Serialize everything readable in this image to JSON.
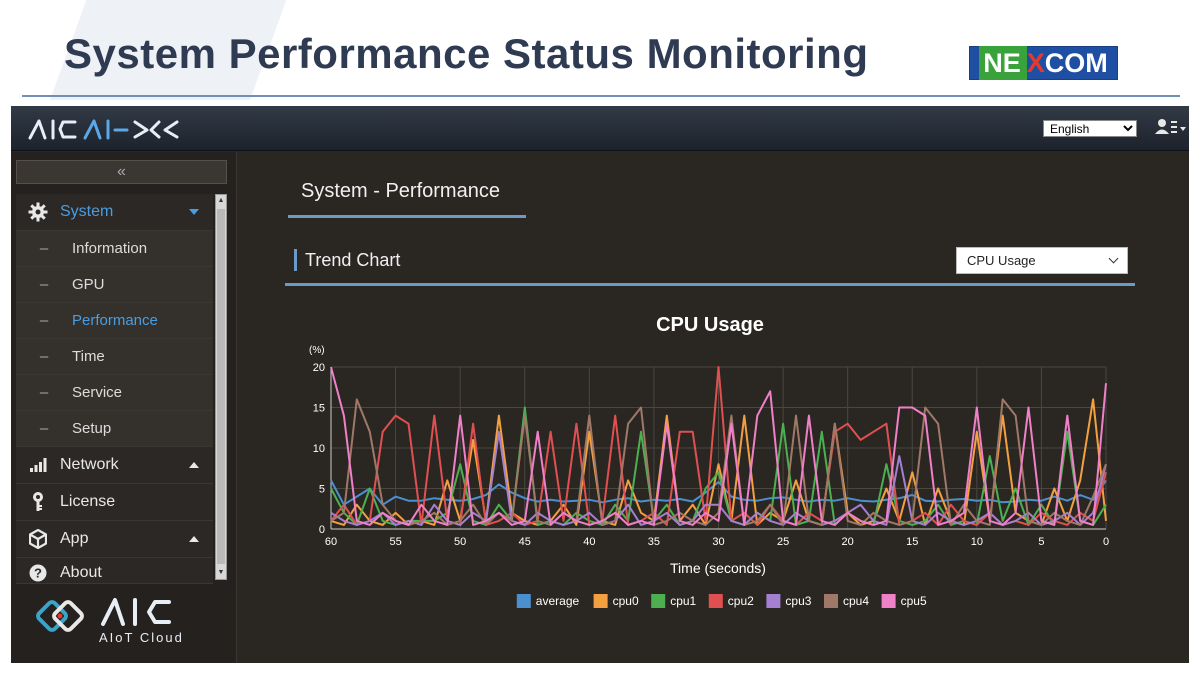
{
  "slide": {
    "title": "System Performance Status Monitoring",
    "brand_logo_text": "NEXCOM"
  },
  "topbar": {
    "app_logo_text": "AICAI-X",
    "language_selected": "English",
    "user_menu_icon": "user-list-icon"
  },
  "sidebar": {
    "collapse_icon": "double-chevron-left-icon",
    "collapse_glyph": "«",
    "items": [
      {
        "label": "System",
        "icon": "gear-icon",
        "expanded": true,
        "children": [
          {
            "label": "Information"
          },
          {
            "label": "GPU"
          },
          {
            "label": "Performance",
            "active": true
          },
          {
            "label": "Time"
          },
          {
            "label": "Service"
          },
          {
            "label": "Setup"
          }
        ]
      },
      {
        "label": "Network",
        "icon": "signal-bars-icon",
        "expanded": false
      },
      {
        "label": "License",
        "icon": "key-icon"
      },
      {
        "label": "App",
        "icon": "cube-icon",
        "expanded": false
      },
      {
        "label": "About",
        "icon": "question-icon"
      }
    ],
    "footer_logo_text": "AIC",
    "footer_logo_subtext": "AIoT Cloud"
  },
  "content": {
    "page_title": "System - Performance",
    "section_title": "Trend Chart",
    "chart_selector_value": "CPU Usage"
  },
  "colors": {
    "accent": "#4a9de0",
    "rule": "#6b9ac7",
    "average": "#4a90d0",
    "cpu0": "#f5a040",
    "cpu1": "#4caf50",
    "cpu2": "#e05050",
    "cpu3": "#a580d0",
    "cpu4": "#a07868",
    "cpu5": "#f080c8"
  },
  "chart_data": {
    "type": "line",
    "title": "CPU Usage",
    "ylabel": "(%)",
    "xlabel": "Time (seconds)",
    "ylim": [
      0,
      20
    ],
    "xlim": [
      60,
      0
    ],
    "yticks": [
      0,
      5,
      10,
      15,
      20
    ],
    "xticks": [
      60,
      55,
      50,
      45,
      40,
      35,
      30,
      25,
      20,
      15,
      10,
      5,
      0
    ],
    "grid": true,
    "legend": "bottom-center",
    "x": [
      60,
      59,
      58,
      57,
      56,
      55,
      54,
      53,
      52,
      51,
      50,
      49,
      48,
      47,
      46,
      45,
      44,
      43,
      42,
      41,
      40,
      39,
      38,
      37,
      36,
      35,
      34,
      33,
      32,
      31,
      30,
      29,
      28,
      27,
      26,
      25,
      24,
      23,
      22,
      21,
      20,
      19,
      18,
      17,
      16,
      15,
      14,
      13,
      12,
      11,
      10,
      9,
      8,
      7,
      6,
      5,
      4,
      3,
      2,
      1,
      0
    ],
    "series": [
      {
        "name": "average",
        "color": "#4a90d0",
        "values": [
          6,
          3,
          4,
          5,
          3,
          4,
          3.5,
          3.5,
          3.8,
          3.6,
          3.5,
          3.7,
          4.2,
          5.5,
          4.5,
          3.8,
          3.4,
          3.6,
          3.4,
          3.5,
          3.6,
          3.3,
          3.6,
          3.8,
          3.4,
          3.6,
          3.5,
          3.7,
          3.4,
          4.5,
          5.8,
          4,
          3.6,
          3.5,
          3.8,
          3.9,
          3.6,
          3.4,
          3.6,
          3.5,
          3.8,
          3.5,
          3.4,
          3.6,
          3.8,
          4.2,
          3.5,
          3.4,
          3.6,
          3.7,
          3.5,
          3.6,
          3.3,
          3.4,
          3.6,
          3.5,
          4,
          3.5,
          4.2,
          3.6,
          6
        ]
      },
      {
        "name": "cpu0",
        "color": "#f5a040",
        "values": [
          1,
          0.5,
          3,
          1,
          0.5,
          2,
          0.5,
          1,
          0.5,
          6,
          1,
          11,
          1,
          14,
          2,
          1,
          0.5,
          1,
          3,
          0.5,
          12,
          1,
          0.5,
          6,
          2,
          1,
          14,
          1,
          3,
          0.5,
          8,
          1,
          14,
          0.5,
          2,
          1,
          6,
          1,
          0.5,
          13,
          2,
          0.5,
          1,
          5,
          1,
          7,
          0.5,
          5,
          1,
          0.5,
          12,
          1,
          14,
          2,
          1,
          0.5,
          5,
          1,
          6,
          16,
          1
        ]
      },
      {
        "name": "cpu1",
        "color": "#4caf50",
        "values": [
          5,
          2,
          0.5,
          5,
          1,
          0.5,
          1,
          1,
          1,
          2,
          8,
          1,
          0.5,
          3,
          1,
          15,
          0.5,
          1,
          0.5,
          2,
          1,
          0.5,
          3,
          1,
          12,
          1,
          3,
          0.5,
          1,
          5,
          7,
          1,
          0.5,
          2,
          1,
          13,
          0.5,
          1,
          12,
          0.5,
          2,
          1,
          0.5,
          8,
          1,
          0.5,
          1,
          3,
          0.5,
          1,
          0.5,
          9,
          1,
          5,
          0.5,
          3,
          0.5,
          12,
          1,
          0.5,
          3
        ]
      },
      {
        "name": "cpu2",
        "color": "#e05050",
        "values": [
          1,
          3,
          0.5,
          1,
          12,
          14,
          13,
          0.5,
          14,
          1,
          0.5,
          13,
          0.5,
          1,
          2,
          0.5,
          1,
          12,
          1,
          13,
          0.5,
          1,
          14,
          0.5,
          1,
          2,
          0.5,
          12,
          12,
          1,
          20,
          1,
          2,
          0.5,
          3,
          1,
          0.5,
          2,
          1,
          12,
          13,
          11,
          12,
          13,
          0.5,
          1,
          2,
          0.5,
          3,
          1,
          0.5,
          2,
          0.5,
          1,
          0.5,
          2,
          1,
          0.5,
          2,
          1,
          7
        ]
      },
      {
        "name": "cpu3",
        "color": "#a580d0",
        "values": [
          2,
          1,
          0.5,
          1,
          2,
          0.5,
          1,
          0.5,
          3,
          1,
          0.5,
          2,
          1,
          12,
          1,
          0.5,
          2,
          1,
          0.5,
          1,
          2,
          0.5,
          1,
          3,
          0.5,
          1,
          2,
          0.5,
          1,
          3,
          3,
          1,
          0.5,
          2,
          1,
          0.5,
          2,
          1,
          0.5,
          1,
          2,
          3,
          1,
          0.5,
          9,
          1,
          0.5,
          2,
          1,
          0.5,
          1,
          2,
          0.5,
          1,
          2,
          0.5,
          1,
          2,
          0.5,
          2,
          8
        ]
      },
      {
        "name": "cpu4",
        "color": "#a07868",
        "values": [
          1,
          2,
          16,
          12,
          3,
          1,
          0.5,
          1,
          2,
          0.5,
          1,
          3,
          0.5,
          2,
          1,
          14,
          1,
          0.5,
          2,
          1,
          14,
          0.5,
          1,
          13,
          15,
          0.5,
          1,
          2,
          1,
          0.5,
          2,
          14,
          0.5,
          1,
          3,
          0.5,
          14,
          1,
          0.5,
          13,
          1,
          0.5,
          2,
          1,
          0.5,
          1,
          15,
          13,
          0.5,
          3,
          1,
          0.5,
          16,
          14,
          1,
          0.5,
          2,
          1,
          0.5,
          4,
          8
        ]
      },
      {
        "name": "cpu5",
        "color": "#f080c8",
        "values": [
          20,
          14,
          1,
          0.5,
          2,
          1,
          0.5,
          3,
          1,
          0.5,
          14,
          0.5,
          1,
          2,
          0.5,
          1,
          12,
          0.5,
          2,
          1,
          0.5,
          1,
          2,
          0.5,
          1,
          0.5,
          13,
          1,
          0.5,
          2,
          1,
          13,
          0.5,
          14,
          17,
          1,
          0.5,
          14,
          1,
          0.5,
          2,
          1,
          0.5,
          1,
          15,
          15,
          14,
          0.5,
          1,
          2,
          15,
          1,
          0.5,
          2,
          15,
          1,
          0.5,
          14,
          1,
          0.5,
          18
        ]
      }
    ]
  }
}
